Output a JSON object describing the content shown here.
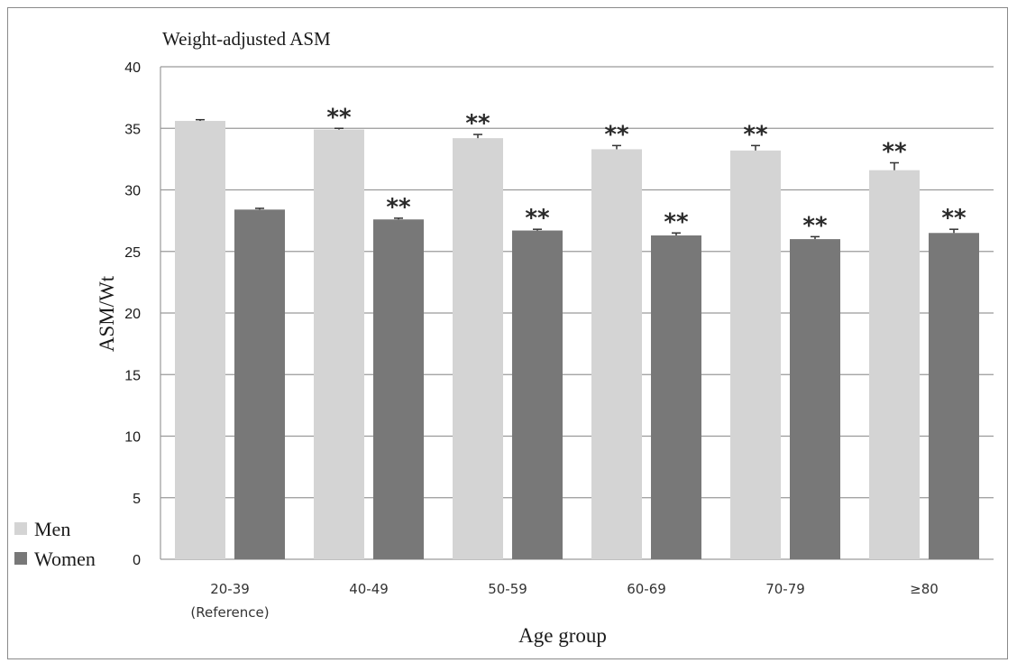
{
  "chart_data": {
    "type": "bar",
    "title": "Weight-adjusted ASM",
    "xlabel": "Age group",
    "ylabel": "ASM/Wt",
    "ylim": [
      0,
      40
    ],
    "yticks": [
      0,
      5,
      10,
      15,
      20,
      25,
      30,
      35,
      40
    ],
    "grid": true,
    "legend_position": "bottom-left",
    "categories": [
      "20-39",
      "40-49",
      "50-59",
      "60-69",
      "70-79",
      "≥80"
    ],
    "category_sublabels": [
      "(Reference)",
      "",
      "",
      "",
      "",
      ""
    ],
    "series": [
      {
        "name": "Men",
        "color": "#d4d4d4",
        "values": [
          35.6,
          34.9,
          34.2,
          33.3,
          33.2,
          31.6
        ],
        "errors": [
          0.1,
          0.1,
          0.3,
          0.3,
          0.4,
          0.6
        ],
        "annotations": [
          "",
          "**",
          "**",
          "**",
          "**",
          "**"
        ]
      },
      {
        "name": "Women",
        "color": "#787878",
        "values": [
          28.4,
          27.6,
          26.7,
          26.3,
          26.0,
          26.5
        ],
        "errors": [
          0.1,
          0.1,
          0.1,
          0.2,
          0.2,
          0.3
        ],
        "annotations": [
          "",
          "**",
          "**",
          "**",
          "**",
          "**"
        ]
      }
    ]
  }
}
